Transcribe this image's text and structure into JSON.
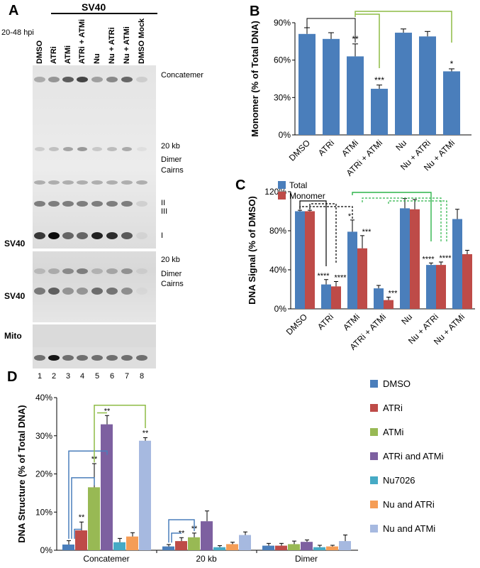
{
  "panel_a": {
    "letter": "A",
    "sv40_header": "SV40",
    "hpi_label": "20-48 hpi",
    "lanes": [
      "DMSO",
      "ATRi",
      "ATMi",
      "ATRi + ATMi",
      "Nu",
      "Nu + ATRi",
      "Nu + ATMi",
      "DMSO Mock"
    ],
    "lane_numbers": [
      "1",
      "2",
      "3",
      "4",
      "5",
      "6",
      "7",
      "8"
    ],
    "band_labels_top": [
      "Concatemer",
      "20 kb",
      "Dimer",
      "Cairns",
      "II",
      "III",
      "I"
    ],
    "band_labels_mid": [
      "20 kb",
      "Dimer",
      "Cairns"
    ],
    "row_labels": [
      "SV40",
      "SV40",
      "Mito"
    ]
  },
  "chart_data": [
    {
      "panel": "B",
      "type": "bar",
      "categories": [
        "DMSO",
        "ATRi",
        "ATMi",
        "ATRi + ATMi",
        "Nu",
        "Nu + ATRi",
        "Nu + ATMi"
      ],
      "values": [
        81,
        77,
        63,
        37,
        82,
        79,
        51
      ],
      "errors": [
        5,
        5,
        10,
        3,
        3,
        4,
        2
      ],
      "significance": [
        "",
        "",
        "**",
        "***",
        "",
        "",
        "*"
      ],
      "ylabel": "Monomer (% of Total DNA)",
      "ylim": [
        0,
        90
      ],
      "yticks": [
        "0%",
        "30%",
        "60%",
        "90%"
      ],
      "color": "#4a7ebb"
    },
    {
      "panel": "C",
      "type": "bar",
      "categories": [
        "DMSO",
        "ATRi",
        "ATMi",
        "ATRi + ATMi",
        "Nu",
        "Nu + ATRi",
        "Nu + ATMi"
      ],
      "series": [
        {
          "name": "Total",
          "values": [
            100,
            25,
            79,
            21,
            103,
            45,
            92
          ],
          "errors": [
            1,
            5,
            12,
            3,
            10,
            2,
            10
          ],
          "color": "#4a7ebb"
        },
        {
          "name": "Monomer",
          "values": [
            100,
            23,
            62,
            9,
            102,
            45,
            56
          ],
          "errors": [
            1,
            5,
            13,
            3,
            10,
            3,
            4
          ],
          "color": "#be4b48"
        }
      ],
      "significance_total": [
        "",
        "****",
        "*",
        "",
        "",
        "****",
        ""
      ],
      "significance_monomer": [
        "",
        "****",
        "***",
        "***",
        "",
        "****",
        ""
      ],
      "ylabel": "DNA Signal (% of DMSO)",
      "ylim": [
        0,
        120
      ],
      "yticks": [
        "0%",
        "40%",
        "80%",
        "120%"
      ],
      "legend": "top-left"
    },
    {
      "panel": "D",
      "type": "bar",
      "categories": [
        "Concatemer",
        "20 kb",
        "Dimer"
      ],
      "series": [
        {
          "name": "DMSO",
          "values": [
            1.5,
            1.0,
            1.2
          ],
          "errors": [
            1.0,
            0.5,
            0.6
          ],
          "color": "#4a7ebb"
        },
        {
          "name": "ATRi",
          "values": [
            5.2,
            2.4,
            1.2
          ],
          "errors": [
            2.2,
            0.9,
            0.6
          ],
          "color": "#be4b48"
        },
        {
          "name": "ATMi",
          "values": [
            16.5,
            3.4,
            1.6
          ],
          "errors": [
            6.2,
            1.1,
            0.8
          ],
          "color": "#98b954"
        },
        {
          "name": "ATRi and ATMi",
          "values": [
            33.0,
            7.6,
            2.2
          ],
          "errors": [
            2.3,
            2.7,
            0.5
          ],
          "color": "#7d60a0"
        },
        {
          "name": "Nu7026",
          "values": [
            2.1,
            0.8,
            0.8
          ],
          "errors": [
            1.0,
            0.4,
            0.5
          ],
          "color": "#46aac5"
        },
        {
          "name": "Nu and ATRi",
          "values": [
            3.6,
            1.6,
            1.0
          ],
          "errors": [
            1.0,
            0.5,
            0.3
          ],
          "color": "#f59d56"
        },
        {
          "name": "Nu and ATMi",
          "values": [
            28.7,
            4.0,
            2.4
          ],
          "errors": [
            0.8,
            0.8,
            1.6
          ],
          "color": "#a6b9e0"
        }
      ],
      "significance": {
        "Concatemer": [
          "",
          "**",
          "**",
          "**",
          "",
          "",
          "**"
        ],
        "20 kb": [
          "",
          "**",
          "**",
          "",
          "",
          "",
          ""
        ],
        "Dimer": [
          "",
          "",
          "",
          "",
          "",
          "",
          ""
        ]
      },
      "ylabel": "DNA Structure (% of Total DNA)",
      "ylim": [
        0,
        40
      ],
      "yticks": [
        "0%",
        "10%",
        "20%",
        "30%",
        "40%"
      ],
      "legend": "right"
    }
  ],
  "panel_letters": {
    "b": "B",
    "c": "C",
    "d": "D"
  }
}
